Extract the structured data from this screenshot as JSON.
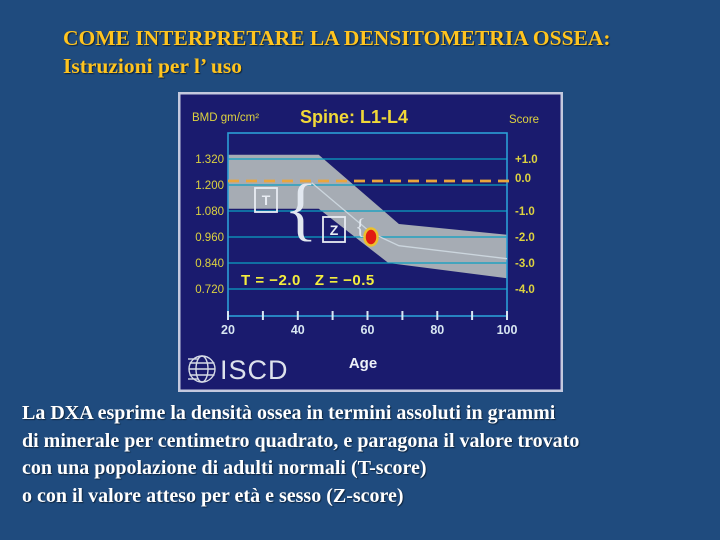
{
  "slide": {
    "background_color": "#1f4b7e",
    "title_color": "#ffc41f",
    "title_lines": [
      "COME INTERPRETARE LA DENSITOMETRIA OSSEA:",
      "Istruzioni per l’ uso"
    ],
    "body_color": "#ffffff",
    "body_lines": [
      "La DXA esprime la densità ossea in termini assoluti in grammi",
      "di minerale per centimetro quadrato, e paragona il valore trovato",
      "con una popolazione di adulti normali (T-score)",
      "o con il valore atteso per età e sesso (Z-score)"
    ]
  },
  "chart": {
    "bmd_axis_label": "BMD gm/cm²",
    "title": "Spine: L1-L4",
    "score_axis_label": "Score",
    "x_label": "Age",
    "t_marker": "T",
    "z_marker": "Z",
    "brace": "{",
    "result_text": "T = −2.0   Z = −0.5",
    "logo_text": "ISCD",
    "colors": {
      "background": "#1a1b6e",
      "frame_border": "#c4c9de",
      "plot_border": "#2b9fd6",
      "gridline": "#0aa0c2",
      "band": "#a6acb4",
      "mean_line": "#ccd6de",
      "dashed_reference": "#eaa63c",
      "axis_label_yellow": "#ddd23f",
      "result_yellow": "#f4ee3e",
      "tick_white": "#d8e6f2",
      "patient_dot_fill": "#e11b12",
      "patient_dot_ring": "#ecc02c"
    }
  },
  "chart_data": {
    "type": "line",
    "title": "Spine: L1-L4",
    "xlabel": "Age",
    "ylabel_left": "BMD gm/cm²",
    "ylabel_right": "Score",
    "x_range": [
      20,
      100
    ],
    "x_ticks": [
      20,
      30,
      40,
      50,
      60,
      70,
      80,
      90,
      100
    ],
    "x_tick_labels": [
      "20",
      "40",
      "60",
      "80",
      "100"
    ],
    "y_left_ticks": [
      1.32,
      1.2,
      1.08,
      0.96,
      0.84,
      0.72
    ],
    "y_right_tick_labels": [
      "+1.0",
      "0.0",
      "-1.0",
      "-2.0",
      "-3.0",
      "-4.0"
    ],
    "y_range_bmd": [
      0.6,
      1.44
    ],
    "reference_line": {
      "bmd": 1.2,
      "score": 0.0,
      "style": "dashed"
    },
    "normal_band": {
      "upper": [
        [
          20,
          1.34
        ],
        [
          46,
          1.34
        ],
        [
          69,
          1.02
        ],
        [
          100,
          0.97
        ]
      ],
      "lower": [
        [
          20,
          1.09
        ],
        [
          46,
          1.09
        ],
        [
          66,
          0.84
        ],
        [
          100,
          0.77
        ]
      ]
    },
    "mean_curve": [
      [
        44,
        1.21
      ],
      [
        61,
        0.98
      ],
      [
        69,
        0.92
      ],
      [
        100,
        0.86
      ]
    ],
    "patient_point": {
      "age": 61,
      "bmd": 0.96,
      "t_score": -2.0,
      "z_score": -0.5
    },
    "annotation": "T = −2.0   Z = −0.5",
    "legend_position": "none",
    "grid": true
  }
}
